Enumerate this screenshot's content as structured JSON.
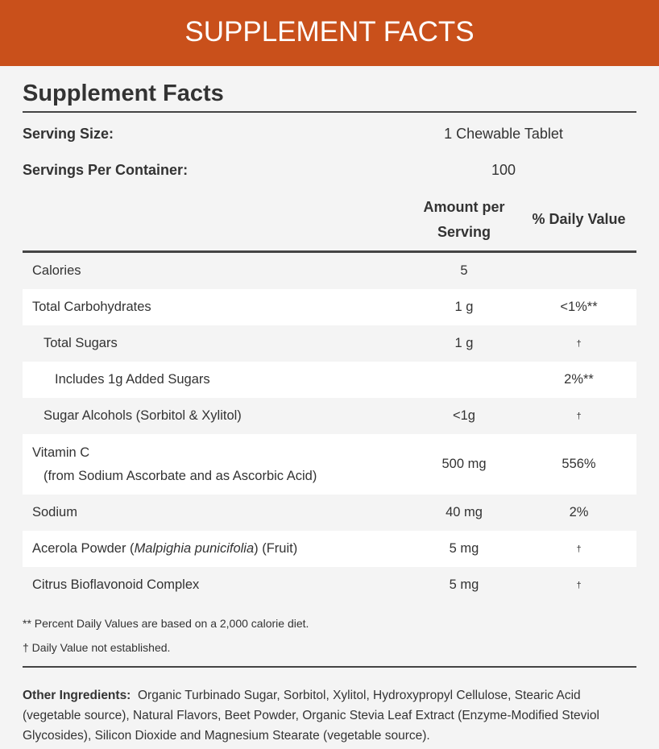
{
  "header": {
    "title": "SUPPLEMENT FACTS"
  },
  "facts": {
    "title": "Supplement Facts",
    "serving_size": {
      "label": "Serving Size:",
      "value": "1 Chewable Tablet"
    },
    "servings_per_container": {
      "label": "Servings Per Container:",
      "value": "100"
    },
    "columns": {
      "amount": [
        "Amount per",
        "Serving"
      ],
      "daily_value": "% Daily Value"
    }
  },
  "table": {
    "rows": [
      {
        "name": "Calories",
        "amount": "5"
      },
      {
        "name": "Total Carbohydrates",
        "amount": "1 g",
        "dv": "<1%**"
      },
      {
        "name": "Total Sugars",
        "amount": "1 g",
        "dv": "†"
      },
      {
        "name": "Includes 1g Added Sugars",
        "dv": "2%**"
      },
      {
        "name": "Sugar Alcohols (Sorbitol & Xylitol)",
        "amount": "<1g",
        "dv": "†"
      },
      {
        "name": "Vitamin C",
        "sub": "(from Sodium Ascorbate and as Ascorbic Acid)",
        "amount": "500 mg",
        "dv": "556%"
      },
      {
        "name": "Sodium",
        "amount": "40 mg",
        "dv": "2%"
      },
      {
        "name": [
          "Acerola Powder (",
          "Malpighia punicifolia",
          ") (Fruit)"
        ],
        "amount": "5 mg",
        "dv": "†"
      },
      {
        "name": "Citrus Bioflavonoid Complex",
        "amount": "5 mg",
        "dv": "†"
      }
    ]
  },
  "footnotes": [
    "** Percent Daily Values are based on a 2,000 calorie diet.",
    "† Daily Value not established."
  ],
  "other_ingredients": {
    "label": "Other Ingredients:",
    "text": "Organic Turbinado Sugar, Sorbitol, Xylitol, Hydroxypropyl Cellulose, Stearic Acid (vegetable source), Natural Flavors, Beet Powder, Organic Stevia Leaf Extract (Enzyme-Modified Steviol Glycosides), Silicon Dioxide and Magnesium Stearate (vegetable source)."
  }
}
